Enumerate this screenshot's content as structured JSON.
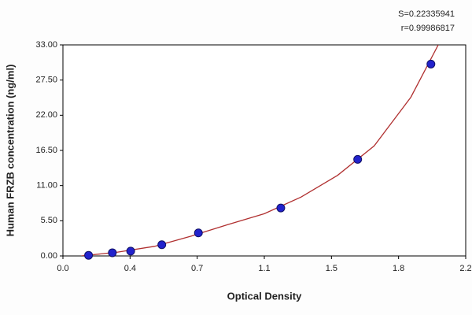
{
  "chart_data": {
    "type": "scatter",
    "xlabel": "Optical Density",
    "ylabel": "Human FRZB concentration (ng/ml)",
    "annotations": [
      "S=0.22335941",
      "r=0.99986817"
    ],
    "xlim": [
      0,
      2.2
    ],
    "xticks": [
      {
        "value": 0,
        "label": "0.0"
      },
      {
        "value": 0.3667,
        "label": "0.4"
      },
      {
        "value": 0.7333,
        "label": "0.7"
      },
      1.1,
      {
        "value": 1.4667,
        "label": "1.5"
      },
      {
        "value": 1.8333,
        "label": "1.8"
      },
      2.2
    ],
    "ylim": [
      0,
      33
    ],
    "yticks": [
      {
        "value": 0,
        "label": "0.00"
      },
      {
        "value": 5.5,
        "label": "5.50"
      },
      {
        "value": 11,
        "label": "11.00"
      },
      {
        "value": 16.5,
        "label": "16.50"
      },
      {
        "value": 22,
        "label": "22.00"
      },
      {
        "value": 27.5,
        "label": "27.50"
      },
      {
        "value": 33,
        "label": "33.00"
      }
    ],
    "grid": false,
    "series": [
      {
        "mode": "markers",
        "color": "#2222cc",
        "x": [
          0.14,
          0.27,
          0.37,
          0.54,
          0.74,
          1.19,
          1.61,
          2.01
        ],
        "values": [
          0.1,
          0.5,
          0.75,
          1.75,
          3.6,
          7.5,
          15.1,
          30.0
        ]
      },
      {
        "mode": "line",
        "color": "#b03030",
        "x": [
          0.1,
          0.3,
          0.5,
          0.7,
          0.9,
          1.1,
          1.3,
          1.5,
          1.7,
          1.9,
          2.05
        ],
        "values": [
          0.0,
          0.6,
          1.5,
          3.1,
          4.9,
          6.6,
          9.2,
          12.6,
          17.2,
          24.8,
          33.0
        ]
      }
    ]
  }
}
